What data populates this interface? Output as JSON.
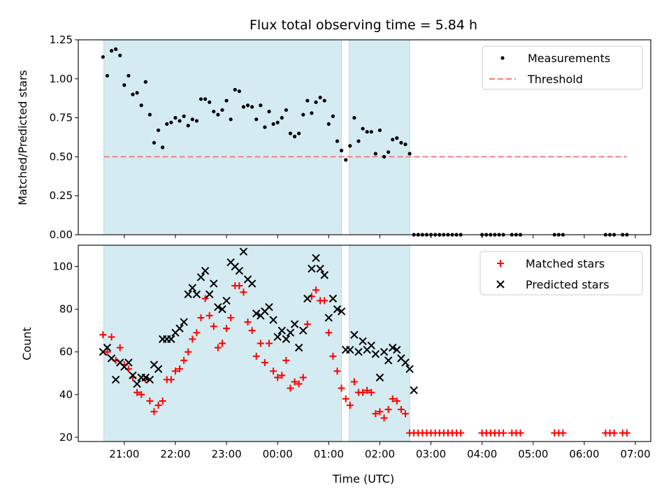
{
  "chart_data": {
    "type": "scatter",
    "title": "Flux total observing time = 5.84 h",
    "xlabel": "Time (UTC)",
    "x_ticks": [
      "21:00",
      "22:00",
      "23:00",
      "00:00",
      "01:00",
      "02:00",
      "03:00",
      "04:00",
      "05:00",
      "06:00",
      "07:00"
    ],
    "x_range_hours": [
      20.1,
      31.3
    ],
    "shaded_intervals": [
      {
        "start": "20:36",
        "end": "01:15"
      },
      {
        "start": "01:24",
        "end": "02:35"
      }
    ],
    "colors": {
      "shade": "#d4ebf1",
      "measurement": "#000000",
      "threshold": "#f08080",
      "matched": "#ff0000",
      "predicted": "#000000"
    },
    "panels": [
      {
        "ylabel": "Matched/Predicted stars",
        "ylim": [
          0,
          1.25
        ],
        "y_ticks": [
          "0.00",
          "0.25",
          "0.50",
          "0.75",
          "1.00",
          "1.25"
        ],
        "legend": {
          "placement": "top-right",
          "entries": [
            "Measurements",
            "Threshold"
          ]
        },
        "threshold": {
          "name": "Threshold",
          "value": 0.5,
          "x_start": "20:36",
          "x_end": "06:50"
        },
        "series": [
          {
            "name": "Measurements",
            "marker": "dot",
            "x": [
              "20:35",
              "20:40",
              "20:45",
              "20:50",
              "20:55",
              "21:00",
              "21:05",
              "21:10",
              "21:15",
              "21:20",
              "21:25",
              "21:30",
              "21:35",
              "21:40",
              "21:45",
              "21:50",
              "21:55",
              "22:00",
              "22:05",
              "22:10",
              "22:15",
              "22:20",
              "22:25",
              "22:30",
              "22:35",
              "22:40",
              "22:45",
              "22:50",
              "22:55",
              "23:00",
              "23:05",
              "23:10",
              "23:15",
              "23:20",
              "23:25",
              "23:30",
              "23:35",
              "23:40",
              "23:45",
              "23:50",
              "23:55",
              "00:00",
              "00:05",
              "00:10",
              "00:15",
              "00:20",
              "00:25",
              "00:30",
              "00:35",
              "00:40",
              "00:45",
              "00:50",
              "00:55",
              "01:00",
              "01:05",
              "01:10",
              "01:15",
              "01:20",
              "01:25",
              "01:30",
              "01:35",
              "01:40",
              "01:45",
              "01:50",
              "01:55",
              "02:00",
              "02:05",
              "02:10",
              "02:15",
              "02:20",
              "02:25",
              "02:30",
              "02:35",
              "02:40",
              "02:45",
              "02:50",
              "02:55",
              "03:00",
              "03:05",
              "03:10",
              "03:15",
              "03:20",
              "03:25",
              "03:30",
              "03:35",
              "04:00",
              "04:05",
              "04:10",
              "04:15",
              "04:20",
              "04:25",
              "04:35",
              "04:40",
              "04:45",
              "05:25",
              "05:30",
              "05:35",
              "06:25",
              "06:30",
              "06:35",
              "06:45",
              "06:50"
            ],
            "y": [
              1.14,
              1.02,
              1.18,
              1.19,
              1.15,
              0.96,
              1.02,
              0.9,
              0.91,
              0.83,
              0.98,
              0.77,
              0.59,
              0.67,
              0.56,
              0.71,
              0.72,
              0.75,
              0.73,
              0.76,
              0.7,
              0.74,
              0.73,
              0.87,
              0.87,
              0.85,
              0.79,
              0.77,
              0.8,
              0.86,
              0.74,
              0.93,
              0.92,
              0.82,
              0.83,
              0.82,
              0.74,
              0.83,
              0.69,
              0.79,
              0.71,
              0.72,
              0.75,
              0.8,
              0.65,
              0.63,
              0.65,
              0.77,
              0.86,
              0.78,
              0.85,
              0.88,
              0.86,
              0.71,
              0.76,
              0.6,
              0.54,
              0.48,
              0.57,
              0.75,
              0.6,
              0.68,
              0.66,
              0.66,
              0.52,
              0.67,
              0.5,
              0.53,
              0.61,
              0.62,
              0.59,
              0.58,
              0.52,
              0,
              0,
              0,
              0,
              0,
              0,
              0,
              0,
              0,
              0,
              0,
              0,
              0,
              0,
              0,
              0,
              0,
              0,
              0,
              0,
              0,
              0,
              0,
              0,
              0,
              0,
              0,
              0,
              0
            ]
          }
        ]
      },
      {
        "ylabel": "Count",
        "ylim": [
          18,
          110
        ],
        "y_ticks": [
          "20",
          "40",
          "60",
          "80",
          "100"
        ],
        "legend": {
          "placement": "top-right",
          "entries": [
            "Matched stars",
            "Predicted stars"
          ]
        },
        "series": [
          {
            "name": "Matched stars",
            "marker": "plus",
            "x": [
              "20:35",
              "20:40",
              "20:45",
              "20:50",
              "20:55",
              "21:00",
              "21:05",
              "21:10",
              "21:15",
              "21:20",
              "21:25",
              "21:30",
              "21:35",
              "21:40",
              "21:45",
              "21:50",
              "21:55",
              "22:00",
              "22:05",
              "22:10",
              "22:15",
              "22:20",
              "22:25",
              "22:30",
              "22:35",
              "22:40",
              "22:45",
              "22:50",
              "22:55",
              "23:00",
              "23:05",
              "23:10",
              "23:15",
              "23:20",
              "23:25",
              "23:30",
              "23:35",
              "23:40",
              "23:45",
              "23:50",
              "23:55",
              "00:00",
              "00:05",
              "00:10",
              "00:15",
              "00:20",
              "00:25",
              "00:30",
              "00:35",
              "00:40",
              "00:45",
              "00:50",
              "00:55",
              "01:00",
              "01:05",
              "01:10",
              "01:15",
              "01:20",
              "01:25",
              "01:30",
              "01:35",
              "01:40",
              "01:45",
              "01:50",
              "01:55",
              "02:00",
              "02:05",
              "02:10",
              "02:15",
              "02:20",
              "02:25",
              "02:30",
              "02:35",
              "02:40",
              "02:45",
              "02:50",
              "02:55",
              "03:00",
              "03:05",
              "03:10",
              "03:15",
              "03:20",
              "03:25",
              "03:30",
              "03:35",
              "04:00",
              "04:05",
              "04:10",
              "04:15",
              "04:20",
              "04:25",
              "04:35",
              "04:40",
              "04:45",
              "05:25",
              "05:30",
              "05:35",
              "06:25",
              "06:30",
              "06:35",
              "06:45",
              "06:50"
            ],
            "y": [
              68,
              60,
              67,
              56,
              62,
              54,
              52,
              48,
              41,
              40,
              47,
              37,
              32,
              35,
              37,
              47,
              47,
              51,
              52,
              56,
              60,
              66,
              69,
              76,
              85,
              77,
              72,
              62,
              64,
              71,
              76,
              91,
              91,
              88,
              74,
              70,
              58,
              64,
              55,
              64,
              51,
              48,
              49,
              56,
              43,
              46,
              45,
              48,
              73,
              86,
              89,
              84,
              84,
              69,
              58,
              51,
              43,
              38,
              35,
              46,
              41,
              41,
              42,
              41,
              31,
              32,
              29,
              33,
              38,
              37,
              33,
              31,
              22,
              22,
              22,
              22,
              22,
              22,
              22,
              22,
              22,
              22,
              22,
              22,
              22,
              22,
              22,
              22,
              22,
              22,
              22,
              22,
              22,
              22,
              22,
              22,
              22,
              22,
              22,
              22,
              22,
              22
            ]
          },
          {
            "name": "Predicted stars",
            "marker": "x",
            "x": [
              "20:35",
              "20:40",
              "20:45",
              "20:50",
              "20:55",
              "21:00",
              "21:05",
              "21:10",
              "21:15",
              "21:20",
              "21:25",
              "21:30",
              "21:35",
              "21:40",
              "21:45",
              "21:50",
              "21:55",
              "22:00",
              "22:05",
              "22:10",
              "22:15",
              "22:20",
              "22:25",
              "22:30",
              "22:35",
              "22:40",
              "22:45",
              "22:50",
              "22:55",
              "23:00",
              "23:05",
              "23:10",
              "23:15",
              "23:20",
              "23:25",
              "23:30",
              "23:35",
              "23:40",
              "23:45",
              "23:50",
              "23:55",
              "00:00",
              "00:05",
              "00:10",
              "00:15",
              "00:20",
              "00:25",
              "00:30",
              "00:35",
              "00:40",
              "00:45",
              "00:50",
              "00:55",
              "01:00",
              "01:05",
              "01:10",
              "01:15",
              "01:20",
              "01:25",
              "01:30",
              "01:35",
              "01:40",
              "01:45",
              "01:50",
              "01:55",
              "02:00",
              "02:05",
              "02:10",
              "02:15",
              "02:20",
              "02:25",
              "02:30",
              "02:35",
              "02:40"
            ],
            "y": [
              60,
              62,
              57,
              47,
              55,
              53,
              55,
              49,
              45,
              48,
              48,
              47,
              54,
              52,
              66,
              66,
              66,
              69,
              71,
              74,
              87,
              90,
              87,
              95,
              98,
              87,
              92,
              81,
              80,
              84,
              102,
              100,
              98,
              107,
              94,
              92,
              78,
              77,
              79,
              81,
              75,
              67,
              70,
              66,
              69,
              73,
              62,
              70,
              85,
              99,
              104,
              99,
              96,
              76,
              85,
              80,
              79,
              61,
              61,
              68,
              60,
              65,
              61,
              63,
              59,
              48,
              60,
              56,
              62,
              61,
              57,
              55,
              52,
              42
            ]
          }
        ]
      }
    ]
  }
}
